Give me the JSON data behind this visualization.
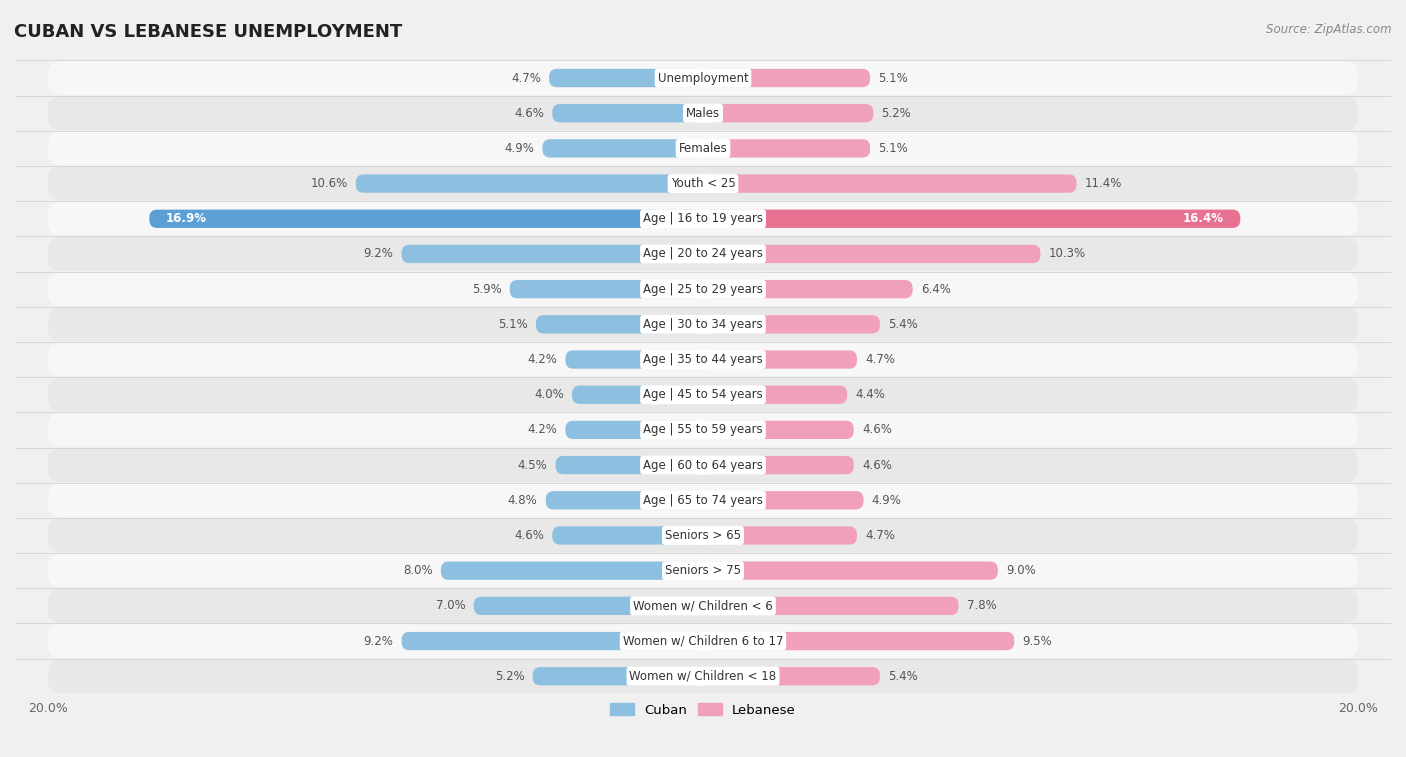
{
  "title": "CUBAN VS LEBANESE UNEMPLOYMENT",
  "source": "Source: ZipAtlas.com",
  "categories": [
    "Unemployment",
    "Males",
    "Females",
    "Youth < 25",
    "Age | 16 to 19 years",
    "Age | 20 to 24 years",
    "Age | 25 to 29 years",
    "Age | 30 to 34 years",
    "Age | 35 to 44 years",
    "Age | 45 to 54 years",
    "Age | 55 to 59 years",
    "Age | 60 to 64 years",
    "Age | 65 to 74 years",
    "Seniors > 65",
    "Seniors > 75",
    "Women w/ Children < 6",
    "Women w/ Children 6 to 17",
    "Women w/ Children < 18"
  ],
  "cuban": [
    4.7,
    4.6,
    4.9,
    10.6,
    16.9,
    9.2,
    5.9,
    5.1,
    4.2,
    4.0,
    4.2,
    4.5,
    4.8,
    4.6,
    8.0,
    7.0,
    9.2,
    5.2
  ],
  "lebanese": [
    5.1,
    5.2,
    5.1,
    11.4,
    16.4,
    10.3,
    6.4,
    5.4,
    4.7,
    4.4,
    4.6,
    4.6,
    4.9,
    4.7,
    9.0,
    7.8,
    9.5,
    5.4
  ],
  "cuban_color": "#8cbfe0",
  "lebanese_color": "#f0a0b8",
  "cuban_highlight_color": "#5b9fd4",
  "lebanese_highlight_color": "#e87090",
  "axis_max": 20.0,
  "bg_color": "#f0f0f0",
  "row_light_color": "#f7f7f7",
  "row_dark_color": "#e8e8e8",
  "bar_height": 0.52,
  "label_fontsize": 8.5,
  "value_fontsize": 8.5,
  "title_fontsize": 13,
  "source_fontsize": 8.5,
  "legend_cuban": "Cuban",
  "legend_lebanese": "Lebanese"
}
